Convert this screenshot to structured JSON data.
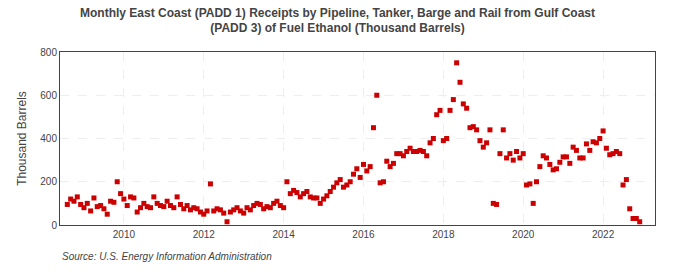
{
  "chart_data": {
    "type": "scatter",
    "title": "Monthly East Coast (PADD 1) Receipts by Pipeline, Tanker, Barge and Rail from Gulf Coast\n(PADD 3) of Fuel Ethanol (Thousand Barrels)",
    "y_label": "Thousand Barrels",
    "annotations": [
      "Source: U.S. Energy Information Administration"
    ],
    "color": "#cc0000",
    "marker": "square",
    "grid": true,
    "xlim": [
      2008.4,
      2023.3
    ],
    "ylim": [
      0,
      800
    ],
    "xticks": [
      2010,
      2012,
      2014,
      2016,
      2018,
      2020,
      2022
    ],
    "yticks": [
      0,
      200,
      400,
      600,
      800
    ],
    "x": [
      2008.583,
      2008.667,
      2008.75,
      2008.833,
      2008.917,
      2009.0,
      2009.083,
      2009.167,
      2009.25,
      2009.333,
      2009.417,
      2009.5,
      2009.583,
      2009.667,
      2009.75,
      2009.833,
      2009.917,
      2010.0,
      2010.083,
      2010.167,
      2010.25,
      2010.333,
      2010.417,
      2010.5,
      2010.583,
      2010.667,
      2010.75,
      2010.833,
      2010.917,
      2011.0,
      2011.083,
      2011.167,
      2011.25,
      2011.333,
      2011.417,
      2011.5,
      2011.583,
      2011.667,
      2011.75,
      2011.833,
      2011.917,
      2012.0,
      2012.083,
      2012.167,
      2012.25,
      2012.333,
      2012.417,
      2012.5,
      2012.583,
      2012.667,
      2012.75,
      2012.833,
      2012.917,
      2013.0,
      2013.083,
      2013.167,
      2013.25,
      2013.333,
      2013.417,
      2013.5,
      2013.583,
      2013.667,
      2013.75,
      2013.833,
      2013.917,
      2014.0,
      2014.083,
      2014.167,
      2014.25,
      2014.333,
      2014.417,
      2014.5,
      2014.583,
      2014.667,
      2014.75,
      2014.833,
      2014.917,
      2015.0,
      2015.083,
      2015.167,
      2015.25,
      2015.333,
      2015.417,
      2015.5,
      2015.583,
      2015.667,
      2015.75,
      2015.833,
      2015.917,
      2016.0,
      2016.083,
      2016.167,
      2016.25,
      2016.333,
      2016.417,
      2016.5,
      2016.583,
      2016.667,
      2016.75,
      2016.833,
      2016.917,
      2017.0,
      2017.083,
      2017.167,
      2017.25,
      2017.333,
      2017.417,
      2017.5,
      2017.583,
      2017.667,
      2017.75,
      2017.833,
      2017.917,
      2018.0,
      2018.083,
      2018.167,
      2018.25,
      2018.333,
      2018.417,
      2018.5,
      2018.583,
      2018.667,
      2018.75,
      2018.833,
      2018.917,
      2019.0,
      2019.083,
      2019.167,
      2019.25,
      2019.333,
      2019.417,
      2019.5,
      2019.583,
      2019.667,
      2019.75,
      2019.833,
      2019.917,
      2020.0,
      2020.083,
      2020.167,
      2020.25,
      2020.333,
      2020.417,
      2020.5,
      2020.583,
      2020.667,
      2020.75,
      2020.833,
      2020.917,
      2021.0,
      2021.083,
      2021.167,
      2021.25,
      2021.333,
      2021.417,
      2021.5,
      2021.583,
      2021.667,
      2021.75,
      2021.833,
      2021.917,
      2022.0,
      2022.083,
      2022.167,
      2022.25,
      2022.333,
      2022.417,
      2022.5,
      2022.583,
      2022.667,
      2022.75,
      2022.833,
      2022.917
    ],
    "values": [
      95,
      120,
      110,
      130,
      95,
      80,
      100,
      65,
      125,
      85,
      90,
      75,
      50,
      110,
      105,
      200,
      145,
      120,
      90,
      130,
      125,
      60,
      80,
      100,
      85,
      80,
      130,
      100,
      90,
      85,
      110,
      90,
      80,
      130,
      95,
      75,
      90,
      70,
      80,
      75,
      60,
      50,
      65,
      190,
      65,
      75,
      70,
      55,
      15,
      60,
      70,
      80,
      65,
      55,
      80,
      70,
      90,
      100,
      95,
      75,
      85,
      80,
      100,
      110,
      90,
      80,
      200,
      145,
      160,
      150,
      130,
      145,
      155,
      130,
      125,
      125,
      100,
      120,
      135,
      155,
      175,
      195,
      210,
      175,
      185,
      200,
      235,
      260,
      220,
      280,
      250,
      270,
      450,
      600,
      195,
      200,
      295,
      270,
      285,
      330,
      330,
      320,
      340,
      355,
      340,
      340,
      345,
      340,
      320,
      380,
      400,
      510,
      530,
      390,
      400,
      530,
      580,
      750,
      660,
      560,
      540,
      450,
      455,
      440,
      390,
      360,
      380,
      440,
      100,
      95,
      330,
      440,
      310,
      330,
      300,
      340,
      310,
      330,
      185,
      190,
      100,
      200,
      270,
      320,
      310,
      280,
      255,
      260,
      290,
      315,
      315,
      285,
      360,
      345,
      310,
      310,
      375,
      345,
      385,
      380,
      400,
      435,
      355,
      325,
      330,
      340,
      330,
      185,
      210,
      75,
      30,
      30,
      15
    ]
  }
}
